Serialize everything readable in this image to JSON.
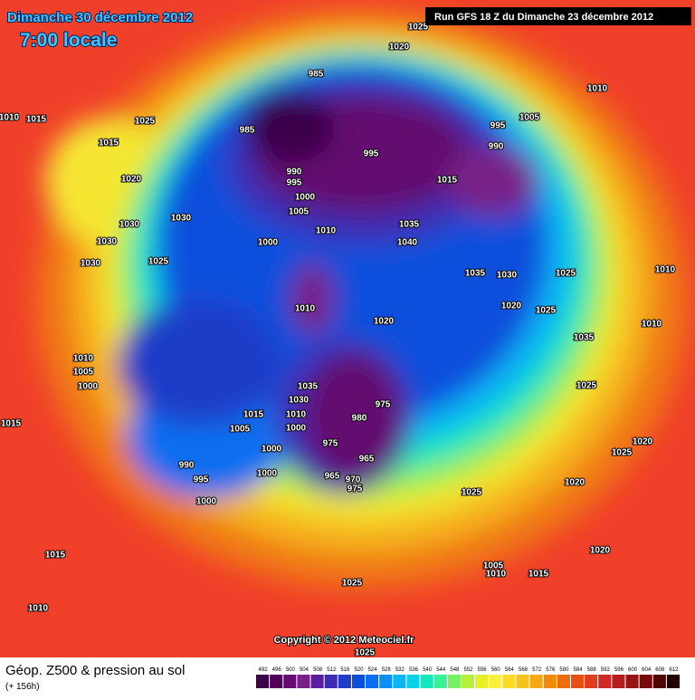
{
  "header": {
    "date": "Dimanche 30 décembre 2012",
    "time": "7:00 locale",
    "run": "Run GFS 18 Z du Dimanche 23 décembre 2012"
  },
  "isobar_labels": [
    "1025",
    "1020",
    "1010",
    "1010",
    "1015",
    "1025",
    "985",
    "985",
    "995",
    "995",
    "1005",
    "990",
    "1015",
    "1020",
    "990",
    "995",
    "1000",
    "1005",
    "1015",
    "1030",
    "1030",
    "1030",
    "1010",
    "1035",
    "1040",
    "1000",
    "1025",
    "1030",
    "1035",
    "1030",
    "1025",
    "1010",
    "1020",
    "1025",
    "1010",
    "1020",
    "1010",
    "1035",
    "1010",
    "1005",
    "1000",
    "1025",
    "1035",
    "975",
    "1030",
    "980",
    "1015",
    "1010",
    "1005",
    "1000",
    "1015",
    "1000",
    "975",
    "965",
    "1025",
    "1020",
    "990",
    "995",
    "1000",
    "965",
    "970",
    "975",
    "1020",
    "1000",
    "1025",
    "1015",
    "1020",
    "1005",
    "1010",
    "1015",
    "1010",
    "1025",
    "1025"
  ],
  "copyright": "Copyright © 2012 Meteociel.fr",
  "legend": {
    "title": "Géop. Z500 & pression au sol",
    "lead": "(+ 156h)",
    "colorbar": {
      "ticks": [
        492,
        496,
        500,
        504,
        508,
        512,
        516,
        520,
        524,
        528,
        532,
        536,
        540,
        544,
        548,
        552,
        556,
        560,
        564,
        568,
        572,
        576,
        580,
        584,
        588,
        592,
        596,
        600,
        604,
        608,
        612
      ],
      "colors": [
        "#3b0048",
        "#50005a",
        "#640a70",
        "#782088",
        "#5a1fa0",
        "#3c2db4",
        "#1e3cc8",
        "#0a50dc",
        "#0a6ef0",
        "#0a90f5",
        "#0ab4f5",
        "#0ad2e6",
        "#14e6be",
        "#3cf096",
        "#78f064",
        "#b4f03c",
        "#e6f028",
        "#faf03c",
        "#fadc28",
        "#f5c31e",
        "#f5aa14",
        "#f08c0a",
        "#eb6e0a",
        "#e65014",
        "#e13c1e",
        "#d22828",
        "#b41e1e",
        "#961414",
        "#780a0a",
        "#500505",
        "#200000"
      ]
    }
  }
}
